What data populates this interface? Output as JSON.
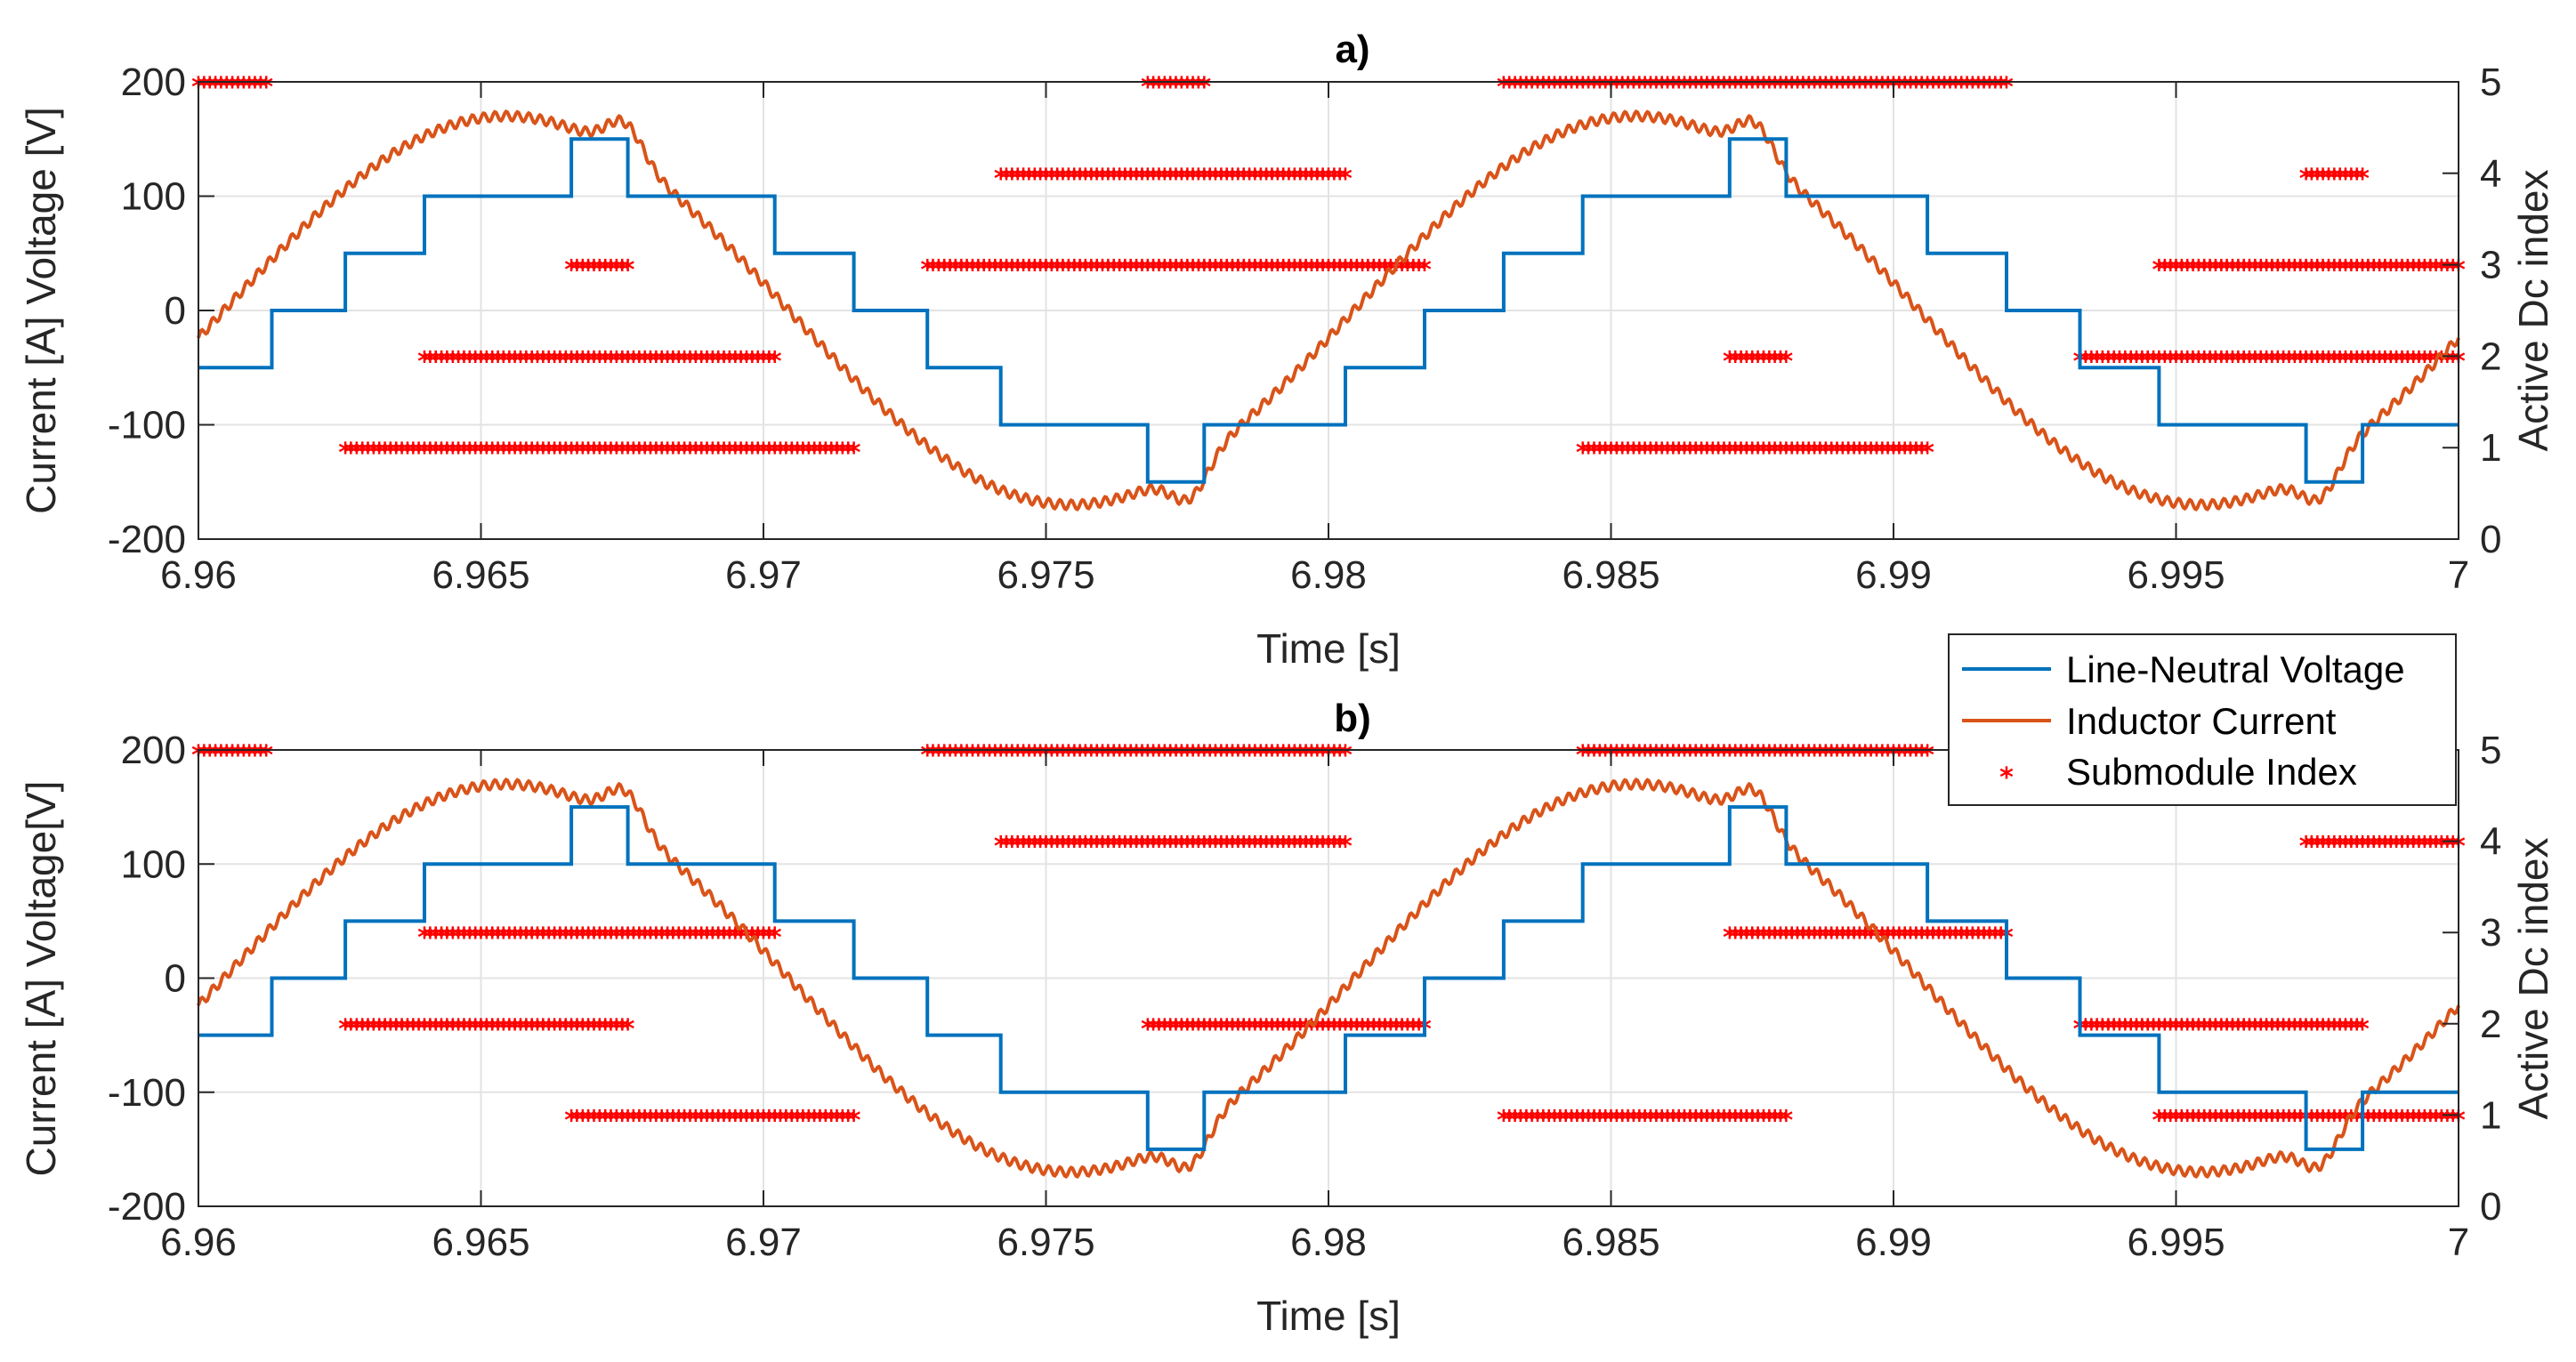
{
  "colors": {
    "voltage": "#0072BD",
    "current": "#D95319",
    "index": "#FF0000",
    "grid": "#E3E3E3",
    "axis": "#262626"
  },
  "legend": {
    "entries": [
      "Line-Neutral Voltage",
      "Inductor Current",
      "Submodule Index"
    ],
    "star_glyph": "*"
  },
  "chart_data": [
    {
      "type": "line",
      "title": "a)",
      "xlabel": "Time [s]",
      "ylabel_left": "Current [A] Voltage [V]",
      "ylabel_right": "Active Dc index",
      "xlim": [
        6.96,
        7.0
      ],
      "ylim_left": [
        -200,
        200
      ],
      "ylim_right": [
        0,
        5
      ],
      "xticks": [
        6.96,
        6.965,
        6.97,
        6.975,
        6.98,
        6.985,
        6.99,
        6.995,
        7.0
      ],
      "xtick_labels": [
        "6.96",
        "6.965",
        "6.97",
        "6.975",
        "6.98",
        "6.985",
        "6.99",
        "6.995",
        "7"
      ],
      "yticks_left": [
        -200,
        -100,
        0,
        100,
        200
      ],
      "ytick_labels_left": [
        "-200",
        "-100",
        "0",
        "100",
        "200"
      ],
      "yticks_right": [
        0,
        1,
        2,
        3,
        4,
        5
      ],
      "ytick_labels_right": [
        "0",
        "1",
        "2",
        "3",
        "4",
        "5"
      ],
      "grid": true,
      "series": [
        {
          "name": "Line-Neutral Voltage",
          "kind": "step",
          "breaks": [
            6.9613,
            6.9626,
            6.964,
            6.9666,
            6.9676,
            6.9702,
            6.9716,
            6.9729,
            6.9742,
            6.9768,
            6.9778,
            6.9803,
            6.9817,
            6.9831,
            6.9845,
            6.9871,
            6.9881,
            6.9906,
            6.992,
            6.9933,
            6.9947,
            6.9973,
            6.9983
          ],
          "levels": [
            -50,
            0,
            50,
            100,
            150,
            100,
            50,
            0,
            -50,
            -100,
            -150,
            -100,
            -50,
            0,
            50,
            100,
            150,
            100,
            50,
            0,
            -50,
            -100,
            -150,
            -100
          ]
        },
        {
          "name": "Inductor Current",
          "kind": "sine",
          "amplitude": 170,
          "frequency_hz": 50,
          "peak_time": 6.96545,
          "ripple": 4,
          "bump_amplitude": 30,
          "bump_width": 0.00045
        },
        {
          "name": "Submodule Index",
          "kind": "segments",
          "segments": [
            {
              "level": 5,
              "from": 6.96,
              "to": 6.9612
            },
            {
              "level": 5,
              "from": 6.9768,
              "to": 6.9778
            },
            {
              "level": 5,
              "from": 6.9831,
              "to": 6.992
            },
            {
              "level": 4,
              "from": 6.9742,
              "to": 6.9803
            },
            {
              "level": 4,
              "from": 6.9973,
              "to": 6.9983
            },
            {
              "level": 3,
              "from": 6.9666,
              "to": 6.9676
            },
            {
              "level": 3,
              "from": 6.9729,
              "to": 6.9817
            },
            {
              "level": 3,
              "from": 6.9947,
              "to": 7.0
            },
            {
              "level": 2,
              "from": 6.964,
              "to": 6.9702
            },
            {
              "level": 2,
              "from": 6.9871,
              "to": 6.9881
            },
            {
              "level": 2,
              "from": 6.9933,
              "to": 7.0
            },
            {
              "level": 1,
              "from": 6.9626,
              "to": 6.9716
            },
            {
              "level": 1,
              "from": 6.9845,
              "to": 6.9906
            }
          ]
        }
      ]
    },
    {
      "type": "line",
      "title": "b)",
      "xlabel": "Time [s]",
      "ylabel_left": "Current [A] Voltage[V]",
      "ylabel_right": "Active Dc index",
      "xlim": [
        6.96,
        7.0
      ],
      "ylim_left": [
        -200,
        200
      ],
      "ylim_right": [
        0,
        5
      ],
      "xticks": [
        6.96,
        6.965,
        6.97,
        6.975,
        6.98,
        6.985,
        6.99,
        6.995,
        7.0
      ],
      "xtick_labels": [
        "6.96",
        "6.965",
        "6.97",
        "6.975",
        "6.98",
        "6.985",
        "6.99",
        "6.995",
        "7"
      ],
      "yticks_left": [
        -200,
        -100,
        0,
        100,
        200
      ],
      "ytick_labels_left": [
        "-200",
        "-100",
        "0",
        "100",
        "200"
      ],
      "yticks_right": [
        0,
        1,
        2,
        3,
        4,
        5
      ],
      "ytick_labels_right": [
        "0",
        "1",
        "2",
        "3",
        "4",
        "5"
      ],
      "grid": true,
      "series": [
        {
          "name": "Line-Neutral Voltage",
          "kind": "step",
          "breaks": [
            6.9613,
            6.9626,
            6.964,
            6.9666,
            6.9676,
            6.9702,
            6.9716,
            6.9729,
            6.9742,
            6.9768,
            6.9778,
            6.9803,
            6.9817,
            6.9831,
            6.9845,
            6.9871,
            6.9881,
            6.9906,
            6.992,
            6.9933,
            6.9947,
            6.9973,
            6.9983
          ],
          "levels": [
            -50,
            0,
            50,
            100,
            150,
            100,
            50,
            0,
            -50,
            -100,
            -150,
            -100,
            -50,
            0,
            50,
            100,
            150,
            100,
            50,
            0,
            -50,
            -100,
            -150,
            -100
          ]
        },
        {
          "name": "Inductor Current",
          "kind": "sine",
          "amplitude": 170,
          "frequency_hz": 50,
          "peak_time": 6.96545,
          "ripple": 4,
          "bump_amplitude": 30,
          "bump_width": 0.00045
        },
        {
          "name": "Submodule Index",
          "kind": "segments",
          "segments": [
            {
              "level": 5,
              "from": 6.96,
              "to": 6.9612
            },
            {
              "level": 5,
              "from": 6.9729,
              "to": 6.9803
            },
            {
              "level": 5,
              "from": 6.9845,
              "to": 6.9906
            },
            {
              "level": 4,
              "from": 6.9742,
              "to": 6.9803
            },
            {
              "level": 4,
              "from": 6.9973,
              "to": 7.0
            },
            {
              "level": 3,
              "from": 6.964,
              "to": 6.9702
            },
            {
              "level": 3,
              "from": 6.9871,
              "to": 6.992
            },
            {
              "level": 2,
              "from": 6.9626,
              "to": 6.9676
            },
            {
              "level": 2,
              "from": 6.9768,
              "to": 6.9817
            },
            {
              "level": 2,
              "from": 6.9933,
              "to": 6.9983
            },
            {
              "level": 1,
              "from": 6.9666,
              "to": 6.9716
            },
            {
              "level": 1,
              "from": 6.9831,
              "to": 6.9881
            },
            {
              "level": 1,
              "from": 6.9947,
              "to": 7.0
            }
          ]
        }
      ]
    }
  ]
}
